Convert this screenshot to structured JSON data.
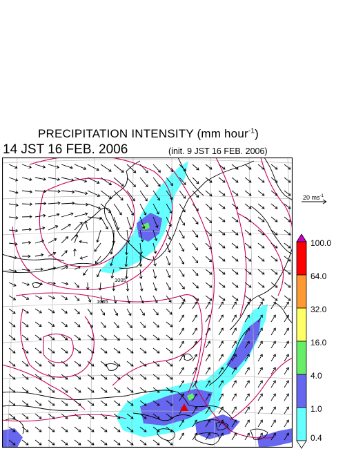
{
  "header": {
    "title": "PRECIPITATION INTENSITY (mm hour",
    "title_exp": "-1",
    "title_close": ")",
    "valid_time": "14 JST 16 FEB. 2006",
    "init_time": "(init. 9 JST 16 FEB. 2006)"
  },
  "map": {
    "isobar_labels": [
      "1005",
      "1005"
    ],
    "colors": {
      "isobar": "#c8005a",
      "grid": "#b4b4b4",
      "coast": "#000000",
      "wind": "#000000",
      "marker": "#e00000"
    },
    "marker_icon": "triangle-icon"
  },
  "wind_scale": {
    "label": "20 ms",
    "label_exp": "-1"
  },
  "colorbar": {
    "labels": [
      "100.0",
      "64.0",
      "32.0",
      "16.0",
      "4.0",
      "1.0",
      "0.4"
    ],
    "colors": [
      "#ff0000",
      "#ff9933",
      "#ffff66",
      "#66ee66",
      "#6666ee",
      "#66ffff"
    ],
    "top_color": "#cc00cc",
    "bottom_color": "#ffffff"
  }
}
